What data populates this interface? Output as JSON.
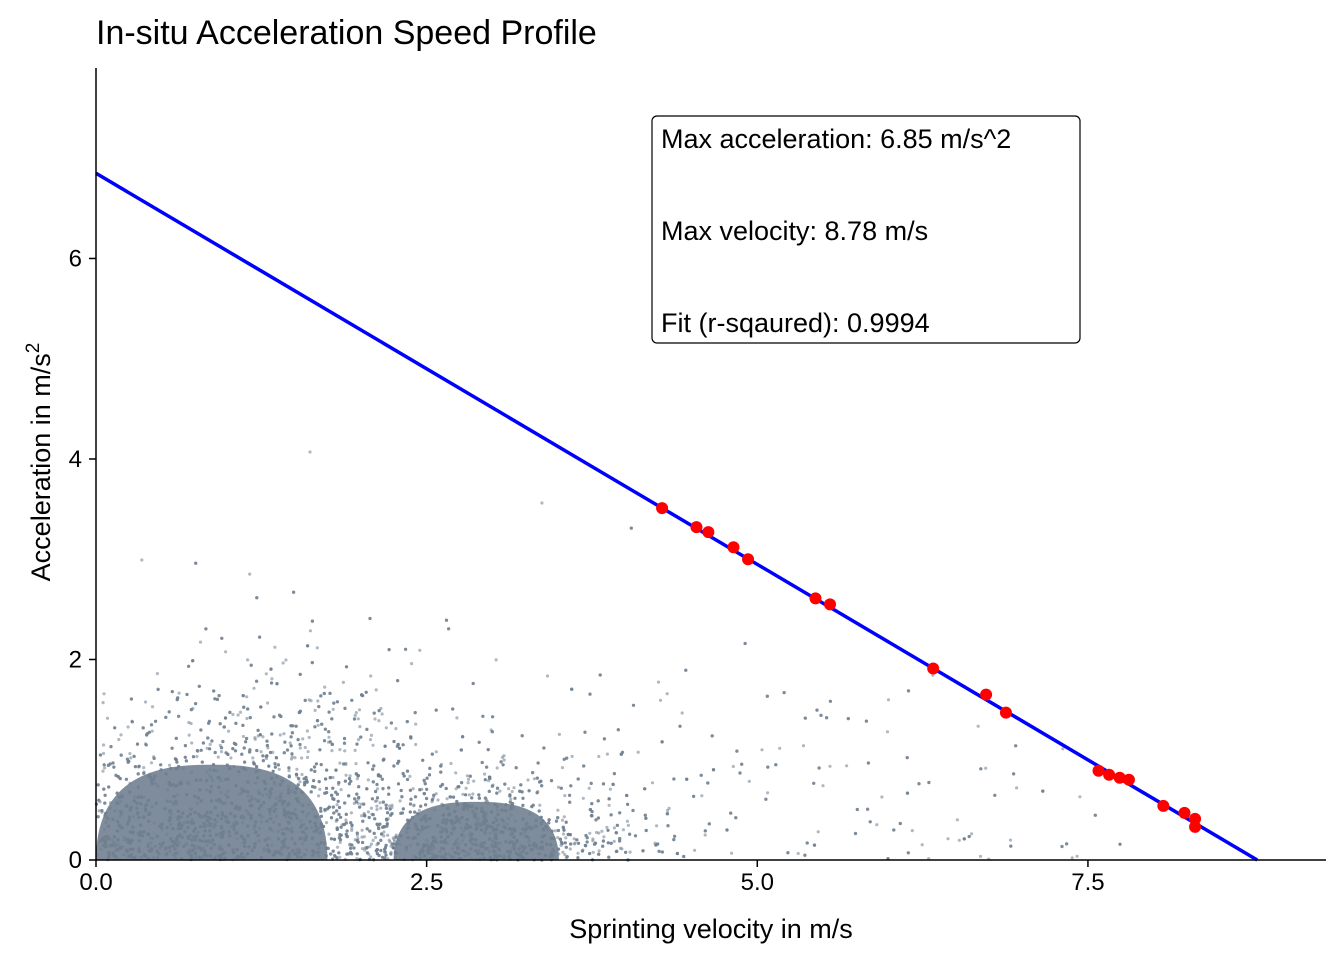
{
  "chart_data": {
    "type": "scatter",
    "title": "In-situ Acceleration Speed Profile",
    "xlabel": "Sprinting velocity in m/s",
    "ylabel_prefix": "Acceleration in m/s",
    "ylabel_superscript": "2",
    "xlim": [
      0,
      9.3
    ],
    "ylim": [
      0,
      7.9
    ],
    "x_ticks": [
      0.0,
      2.5,
      5.0,
      7.5
    ],
    "x_tick_labels": [
      "0.0",
      "2.5",
      "5.0",
      "7.5"
    ],
    "y_ticks": [
      0,
      2,
      4,
      6
    ],
    "y_tick_labels": [
      "0",
      "2",
      "4",
      "6"
    ],
    "grid": false,
    "fit_line": {
      "intercept": 6.85,
      "x_intercept": 8.78,
      "color": "#0000ff"
    },
    "raw_points": {
      "color": "#708090",
      "description_clusters": [
        {
          "center_x": 1.0,
          "center_y": 0.2,
          "spread_x": 1.2,
          "spread_y": 0.55,
          "weight": 0.72
        },
        {
          "center_x": 3.0,
          "center_y": 0.12,
          "spread_x": 0.55,
          "spread_y": 0.35,
          "weight": 0.18
        },
        {
          "center_x": 4.5,
          "center_y": 0.6,
          "spread_x": 2.8,
          "spread_y": 1.2,
          "weight": 0.1
        }
      ]
    },
    "sprint_points": {
      "color": "#ff0000",
      "x": [
        4.28,
        4.54,
        4.63,
        4.82,
        4.93,
        5.44,
        5.55,
        6.33,
        6.73,
        6.88,
        7.58,
        7.66,
        7.74,
        7.81,
        8.07,
        8.23,
        8.31,
        8.31
      ],
      "y": [
        3.51,
        3.32,
        3.27,
        3.12,
        3.0,
        2.61,
        2.55,
        1.91,
        1.65,
        1.47,
        0.89,
        0.85,
        0.82,
        0.8,
        0.54,
        0.47,
        0.41,
        0.33
      ]
    },
    "annotations": [
      "Max acceleration: 6.85 m/s^2",
      "Max velocity: 8.78 m/s",
      "Fit (r-sqaured): 0.9994"
    ]
  }
}
